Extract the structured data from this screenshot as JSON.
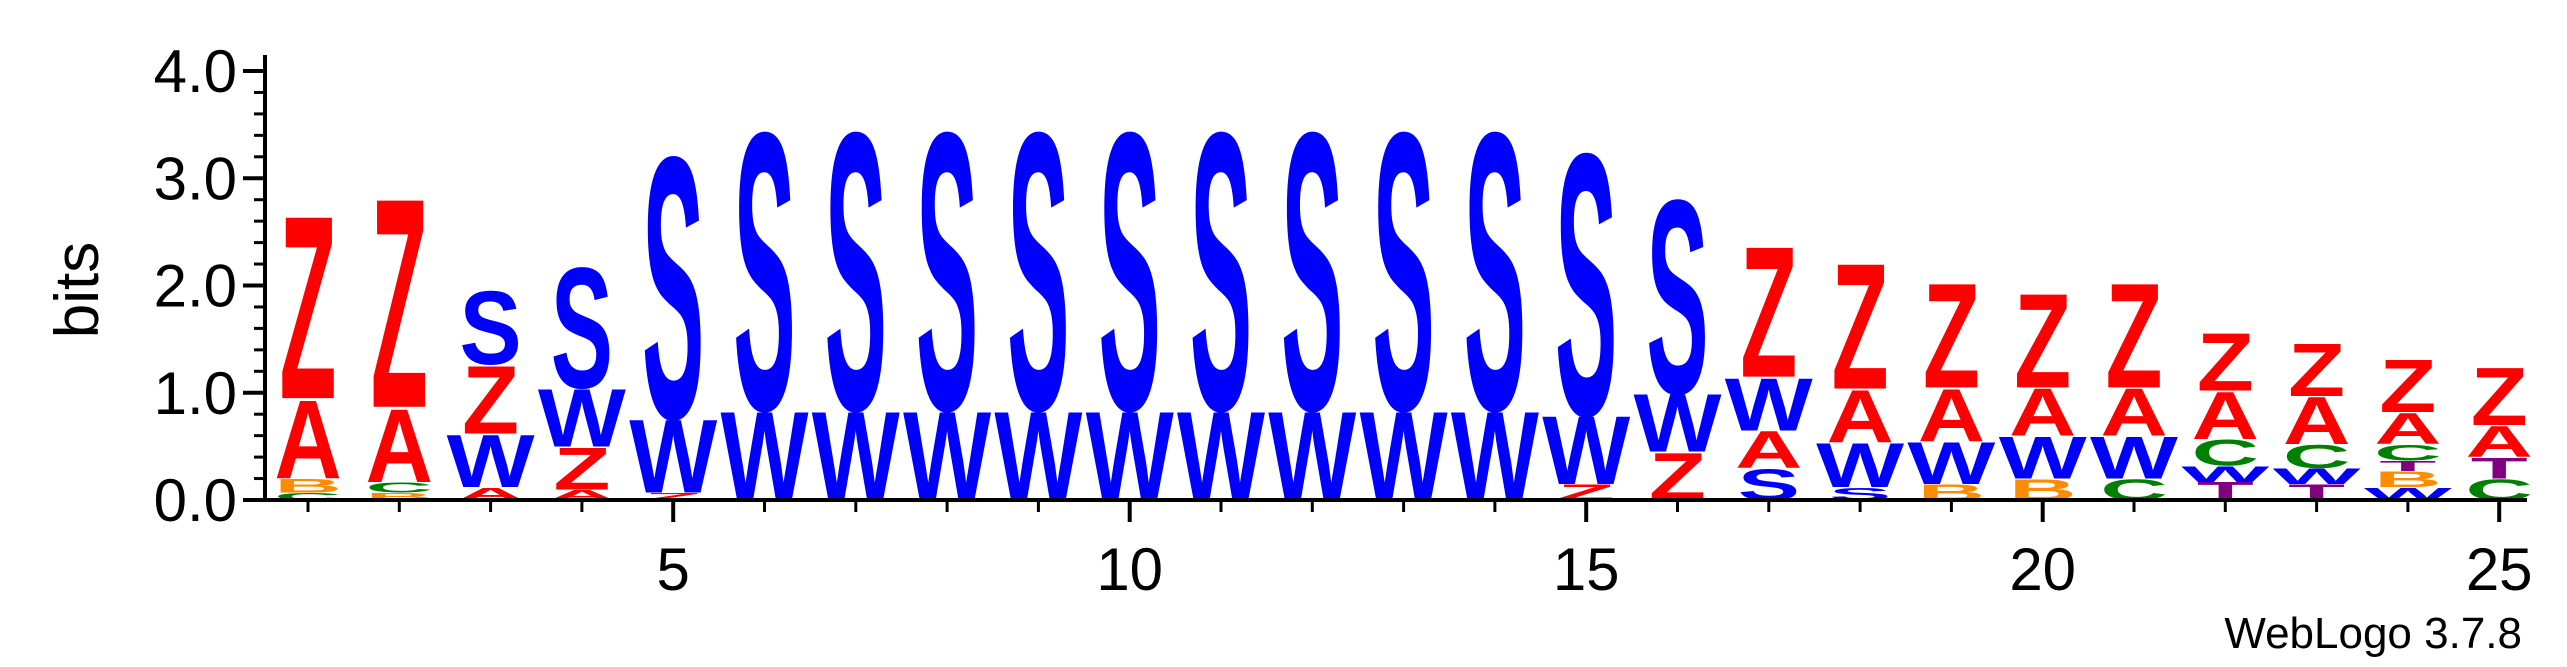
{
  "chart_data": {
    "type": "sequence-logo",
    "ylabel": "bits",
    "ylim": [
      0,
      4
    ],
    "y_ticks": [
      "0.0",
      "1.0",
      "2.0",
      "3.0",
      "4.0"
    ],
    "x_ticks": [
      "5",
      "10",
      "15",
      "20",
      "25"
    ],
    "credit": "WebLogo 3.7.8",
    "colors": {
      "Z": "#ff0000",
      "A": "#ff0000",
      "S": "#0000ff",
      "W": "#0000ff",
      "B": "#ff8c00",
      "C": "#008000",
      "T": "#800080"
    },
    "positions": [
      {
        "pos": 1,
        "stack": [
          {
            "l": "C",
            "h": 0.07
          },
          {
            "l": "B",
            "h": 0.13
          },
          {
            "l": "A",
            "h": 0.75
          },
          {
            "l": "Z",
            "h": 1.75
          }
        ]
      },
      {
        "pos": 2,
        "stack": [
          {
            "l": "B",
            "h": 0.07
          },
          {
            "l": "C",
            "h": 0.1
          },
          {
            "l": "A",
            "h": 0.7
          },
          {
            "l": "Z",
            "h": 2.0
          }
        ]
      },
      {
        "pos": 3,
        "stack": [
          {
            "l": "A",
            "h": 0.12
          },
          {
            "l": "W",
            "h": 0.5
          },
          {
            "l": "Z",
            "h": 0.65
          },
          {
            "l": "S",
            "h": 0.7
          }
        ]
      },
      {
        "pos": 4,
        "stack": [
          {
            "l": "A",
            "h": 0.1
          },
          {
            "l": "Z",
            "h": 0.4
          },
          {
            "l": "W",
            "h": 0.55
          },
          {
            "l": "S",
            "h": 1.15
          }
        ]
      },
      {
        "pos": 5,
        "stack": [
          {
            "l": "Z",
            "h": 0.07
          },
          {
            "l": "W",
            "h": 0.7
          },
          {
            "l": "S",
            "h": 2.5
          }
        ]
      },
      {
        "pos": 6,
        "stack": [
          {
            "l": "W",
            "h": 0.85
          },
          {
            "l": "S",
            "h": 2.65
          }
        ]
      },
      {
        "pos": 7,
        "stack": [
          {
            "l": "W",
            "h": 0.85
          },
          {
            "l": "S",
            "h": 2.65
          }
        ]
      },
      {
        "pos": 8,
        "stack": [
          {
            "l": "W",
            "h": 0.85
          },
          {
            "l": "S",
            "h": 2.65
          }
        ]
      },
      {
        "pos": 9,
        "stack": [
          {
            "l": "W",
            "h": 0.85
          },
          {
            "l": "S",
            "h": 2.65
          }
        ]
      },
      {
        "pos": 10,
        "stack": [
          {
            "l": "W",
            "h": 0.85
          },
          {
            "l": "S",
            "h": 2.65
          }
        ]
      },
      {
        "pos": 11,
        "stack": [
          {
            "l": "W",
            "h": 0.85
          },
          {
            "l": "S",
            "h": 2.65
          }
        ]
      },
      {
        "pos": 12,
        "stack": [
          {
            "l": "W",
            "h": 0.85
          },
          {
            "l": "S",
            "h": 2.65
          }
        ]
      },
      {
        "pos": 13,
        "stack": [
          {
            "l": "W",
            "h": 0.85
          },
          {
            "l": "S",
            "h": 2.65
          }
        ]
      },
      {
        "pos": 14,
        "stack": [
          {
            "l": "W",
            "h": 0.85
          },
          {
            "l": "S",
            "h": 2.65
          }
        ]
      },
      {
        "pos": 15,
        "stack": [
          {
            "l": "Z",
            "h": 0.15
          },
          {
            "l": "W",
            "h": 0.65
          },
          {
            "l": "S",
            "h": 2.5
          }
        ]
      },
      {
        "pos": 16,
        "stack": [
          {
            "l": "Z",
            "h": 0.45
          },
          {
            "l": "W",
            "h": 0.55
          },
          {
            "l": "S",
            "h": 1.85
          }
        ]
      },
      {
        "pos": 17,
        "stack": [
          {
            "l": "S",
            "h": 0.3
          },
          {
            "l": "A",
            "h": 0.35
          },
          {
            "l": "W",
            "h": 0.5
          },
          {
            "l": "Z",
            "h": 1.25
          }
        ]
      },
      {
        "pos": 18,
        "stack": [
          {
            "l": "S",
            "h": 0.12
          },
          {
            "l": "W",
            "h": 0.42
          },
          {
            "l": "A",
            "h": 0.5
          },
          {
            "l": "Z",
            "h": 1.2
          }
        ]
      },
      {
        "pos": 19,
        "stack": [
          {
            "l": "B",
            "h": 0.15
          },
          {
            "l": "W",
            "h": 0.4
          },
          {
            "l": "A",
            "h": 0.5
          },
          {
            "l": "Z",
            "h": 1.0
          }
        ]
      },
      {
        "pos": 20,
        "stack": [
          {
            "l": "B",
            "h": 0.2
          },
          {
            "l": "W",
            "h": 0.4
          },
          {
            "l": "A",
            "h": 0.45
          },
          {
            "l": "Z",
            "h": 0.9
          }
        ]
      },
      {
        "pos": 21,
        "stack": [
          {
            "l": "C",
            "h": 0.2
          },
          {
            "l": "W",
            "h": 0.4
          },
          {
            "l": "A",
            "h": 0.45
          },
          {
            "l": "Z",
            "h": 1.0
          }
        ]
      },
      {
        "pos": 22,
        "stack": [
          {
            "l": "T",
            "h": 0.17
          },
          {
            "l": "W",
            "h": 0.15
          },
          {
            "l": "C",
            "h": 0.25
          },
          {
            "l": "A",
            "h": 0.45
          },
          {
            "l": "Z",
            "h": 0.55
          }
        ]
      },
      {
        "pos": 23,
        "stack": [
          {
            "l": "T",
            "h": 0.15
          },
          {
            "l": "W",
            "h": 0.15
          },
          {
            "l": "C",
            "h": 0.22
          },
          {
            "l": "A",
            "h": 0.45
          },
          {
            "l": "Z",
            "h": 0.5
          }
        ]
      },
      {
        "pos": 24,
        "stack": [
          {
            "l": "W",
            "h": 0.12
          },
          {
            "l": "B",
            "h": 0.15
          },
          {
            "l": "T",
            "h": 0.1
          },
          {
            "l": "C",
            "h": 0.15
          },
          {
            "l": "A",
            "h": 0.3
          },
          {
            "l": "Z",
            "h": 0.5
          }
        ]
      },
      {
        "pos": 25,
        "stack": [
          {
            "l": "C",
            "h": 0.2
          },
          {
            "l": "T",
            "h": 0.2
          },
          {
            "l": "A",
            "h": 0.3
          },
          {
            "l": "Z",
            "h": 0.55
          }
        ]
      }
    ]
  }
}
